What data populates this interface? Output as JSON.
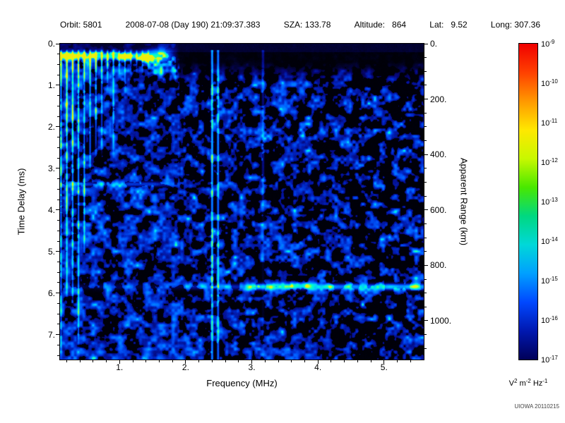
{
  "header": {
    "segments": [
      "Orbit: 5801",
      "2008-07-08 (Day 190) 21:09:37.383",
      "SZA: 133.78",
      "Altitude:   864",
      "Lat:   9.52",
      "Long: 307.36"
    ]
  },
  "chart_data": {
    "type": "heatmap",
    "title": "",
    "xlabel": "Frequency (MHz)",
    "ylabel": "Time Delay (ms)",
    "ylabel_right": "Apparent Range (km)",
    "x_range_mhz": [
      0.1,
      5.6
    ],
    "y_range_ms": [
      0.0,
      7.6
    ],
    "x_ticks": {
      "values": [
        1,
        2,
        3,
        4,
        5
      ],
      "labels": [
        "1.",
        "2.",
        "3.",
        "4.",
        "5."
      ],
      "minor_step": 0.2
    },
    "y_ticks": {
      "values": [
        0,
        1,
        2,
        3,
        4,
        5,
        6,
        7
      ],
      "labels": [
        "0.",
        "1.",
        "2.",
        "3.",
        "4.",
        "5.",
        "6.",
        "7."
      ],
      "minor_step": 0.25
    },
    "right_axis": {
      "values_km": [
        0,
        200,
        400,
        600,
        800,
        1000
      ],
      "labels": [
        "0.",
        "200.",
        "400.",
        "600.",
        "800.",
        "1000."
      ],
      "minor_step_km": 50,
      "km_per_ms": 150
    },
    "colorbar": {
      "exponents": [
        "-9",
        "-10",
        "-11",
        "-12",
        "-13",
        "-14",
        "-15",
        "-16",
        "-17"
      ],
      "unit_segments": [
        [
          "V",
          "2"
        ],
        [
          " m",
          "-2"
        ],
        [
          " Hz",
          "-1"
        ]
      ],
      "colors_top_to_bottom": [
        "#f00000",
        "#ff4000",
        "#ff9800",
        "#ffe800",
        "#c8f800",
        "#48e800",
        "#00d880",
        "#00d8d8",
        "#00a0ff",
        "#0048ff",
        "#0018b0",
        "#000058"
      ]
    },
    "features": {
      "ionospheric_echo_trace": {
        "time_delay_ms": 0.3,
        "freq_start_mhz": 0.1,
        "freq_end_mhz": 1.9
      },
      "plasma_resonance_harmonics": {
        "first_mhz": 0.115,
        "spacing_mhz": 0.088,
        "freq_end_mhz": 1.45
      },
      "narrowband_interference_mhz": [
        2.4,
        2.49,
        3.17
      ],
      "surface_echo": {
        "time_delay_ms": 5.85,
        "freq_start_mhz": 3.0,
        "freq_end_mhz": 5.6
      },
      "secondary_echo": {
        "time_delay_ms": 3.38,
        "freq_start_mhz": 0.1,
        "freq_end_mhz": 2.0
      },
      "noise_seed": 7
    },
    "background_color": "#000000"
  },
  "credit": "UIOWA 20110215"
}
